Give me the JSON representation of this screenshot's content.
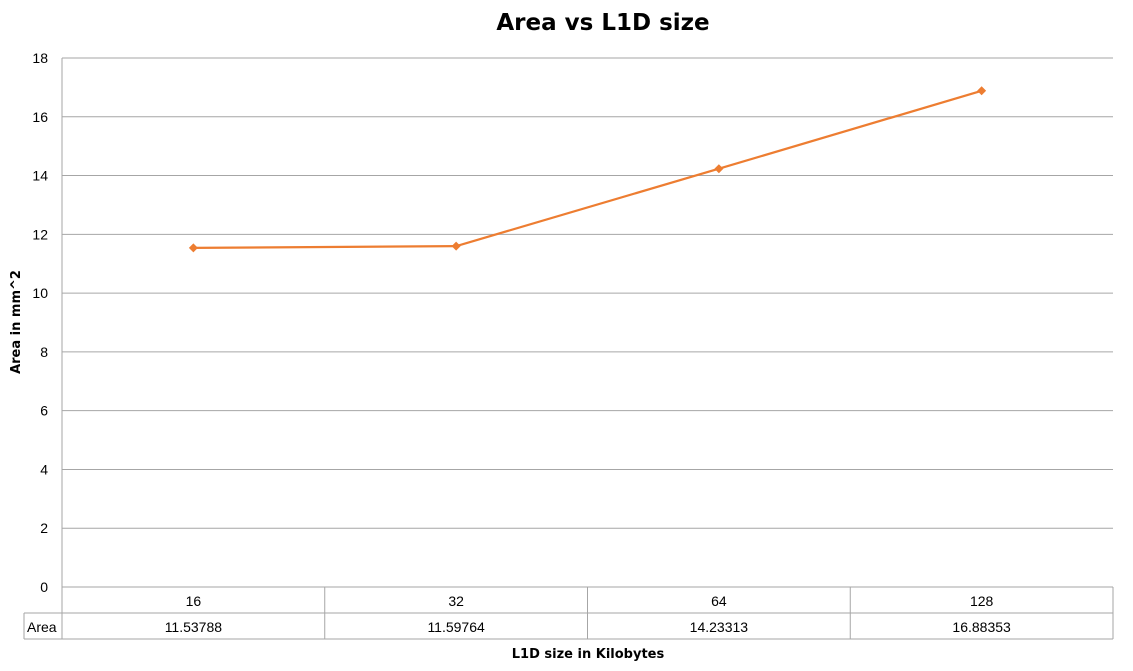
{
  "chart_data": {
    "type": "line",
    "title": "Area vs L1D size",
    "xlabel": "L1D size in Kilobytes",
    "ylabel": "Area in mm^2",
    "categories": [
      "16",
      "32",
      "64",
      "128"
    ],
    "series": [
      {
        "name": "Area",
        "values": [
          11.53788,
          11.59764,
          14.23313,
          16.88353
        ],
        "value_labels": [
          "11.53788",
          "11.59764",
          "14.23313",
          "16.88353"
        ]
      }
    ],
    "ylim": [
      0,
      18
    ],
    "yticks": [
      "0",
      "2",
      "4",
      "6",
      "8",
      "10",
      "12",
      "14",
      "16",
      "18"
    ],
    "grid": true,
    "data_table": true,
    "line_color": "#ED7D31",
    "grid_color": "#A6A6A6"
  }
}
